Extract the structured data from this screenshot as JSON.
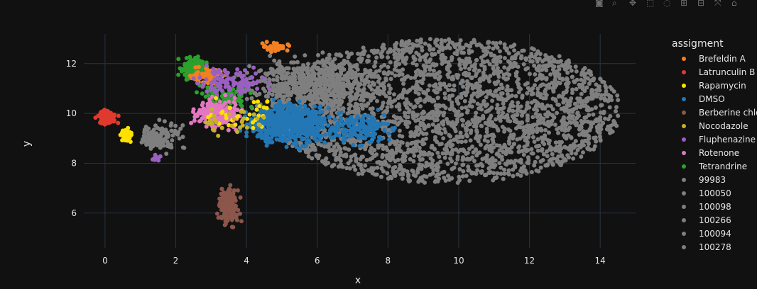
{
  "toolbar": {
    "icons": [
      "camera-icon",
      "zoom-icon",
      "pan-icon",
      "box-select-icon",
      "lasso-icon",
      "zoom-in-icon",
      "zoom-out-icon",
      "autoscale-icon",
      "home-icon"
    ]
  },
  "chart_data": {
    "type": "scatter",
    "xlabel": "x",
    "ylabel": "y",
    "xlim": [
      -0.6,
      15.0
    ],
    "ylim": [
      4.6,
      13.7
    ],
    "xticks": [
      0,
      2,
      4,
      6,
      8,
      10,
      12,
      14
    ],
    "yticks": [
      6,
      8,
      10,
      12
    ],
    "grid": true,
    "legend_title": "assigment",
    "legend_position": "right",
    "series": [
      {
        "name": "Brefeldin A",
        "color": "#f28022"
      },
      {
        "name": "Latrunculin B",
        "color": "#e03a2f"
      },
      {
        "name": "Rapamycin",
        "color": "#ffe100"
      },
      {
        "name": "DMSO",
        "color": "#2377b5"
      },
      {
        "name": "Berberine chloride",
        "color": "#8c564b"
      },
      {
        "name": "Nocodazole",
        "color": "#c5b12a"
      },
      {
        "name": "Fluphenazine",
        "color": "#9a60c0"
      },
      {
        "name": "Rotenone",
        "color": "#e377c2"
      },
      {
        "name": "Tetrandrine",
        "color": "#2ca02c"
      },
      {
        "name": "99983",
        "color": "#7f7f7f"
      },
      {
        "name": "100050",
        "color": "#7f7f7f"
      },
      {
        "name": "100098",
        "color": "#7f7f7f"
      },
      {
        "name": "100266",
        "color": "#7f7f7f"
      },
      {
        "name": "100094",
        "color": "#7f7f7f"
      },
      {
        "name": "100278",
        "color": "#7f7f7f"
      }
    ],
    "clusters": [
      {
        "series": "100050",
        "cx": 9.6,
        "cy": 10.1,
        "rx": 5.0,
        "ry": 2.9,
        "n": 2600
      },
      {
        "series": "99983",
        "cx": 5.8,
        "cy": 11.2,
        "rx": 2.6,
        "ry": 1.4,
        "n": 500
      },
      {
        "series": "100098",
        "cx": 1.5,
        "cy": 9.1,
        "rx": 0.9,
        "ry": 0.8,
        "n": 120
      },
      {
        "series": "DMSO",
        "cx": 5.2,
        "cy": 9.6,
        "rx": 1.6,
        "ry": 1.1,
        "n": 650
      },
      {
        "series": "DMSO",
        "cx": 7.2,
        "cy": 9.4,
        "rx": 1.2,
        "ry": 0.9,
        "n": 160
      },
      {
        "series": "Tetrandrine",
        "cx": 2.5,
        "cy": 11.8,
        "rx": 0.5,
        "ry": 0.6,
        "n": 160
      },
      {
        "series": "Tetrandrine",
        "cx": 3.4,
        "cy": 10.7,
        "rx": 1.1,
        "ry": 0.8,
        "n": 80
      },
      {
        "series": "Brefeldin A",
        "cx": 2.9,
        "cy": 11.5,
        "rx": 0.6,
        "ry": 0.5,
        "n": 70
      },
      {
        "series": "Brefeldin A",
        "cx": 4.8,
        "cy": 12.7,
        "rx": 0.6,
        "ry": 0.3,
        "n": 35
      },
      {
        "series": "Rotenone",
        "cx": 3.2,
        "cy": 10.0,
        "rx": 0.9,
        "ry": 0.9,
        "n": 200
      },
      {
        "series": "Fluphenazine",
        "cx": 3.6,
        "cy": 11.3,
        "rx": 1.4,
        "ry": 0.7,
        "n": 110
      },
      {
        "series": "Fluphenazine",
        "cx": 1.4,
        "cy": 8.2,
        "rx": 0.3,
        "ry": 0.2,
        "n": 12
      },
      {
        "series": "Latrunculin B",
        "cx": 0.05,
        "cy": 9.8,
        "rx": 0.35,
        "ry": 0.4,
        "n": 110
      },
      {
        "series": "Rapamycin",
        "cx": 0.6,
        "cy": 9.1,
        "rx": 0.25,
        "ry": 0.4,
        "n": 50
      },
      {
        "series": "Rapamycin",
        "cx": 4.0,
        "cy": 10.0,
        "rx": 1.2,
        "ry": 1.0,
        "n": 30
      },
      {
        "series": "Nocodazole",
        "cx": 3.8,
        "cy": 9.6,
        "rx": 1.4,
        "ry": 0.8,
        "n": 30
      },
      {
        "series": "Berberine chloride",
        "cx": 3.5,
        "cy": 6.3,
        "rx": 0.4,
        "ry": 1.1,
        "n": 180
      }
    ]
  }
}
